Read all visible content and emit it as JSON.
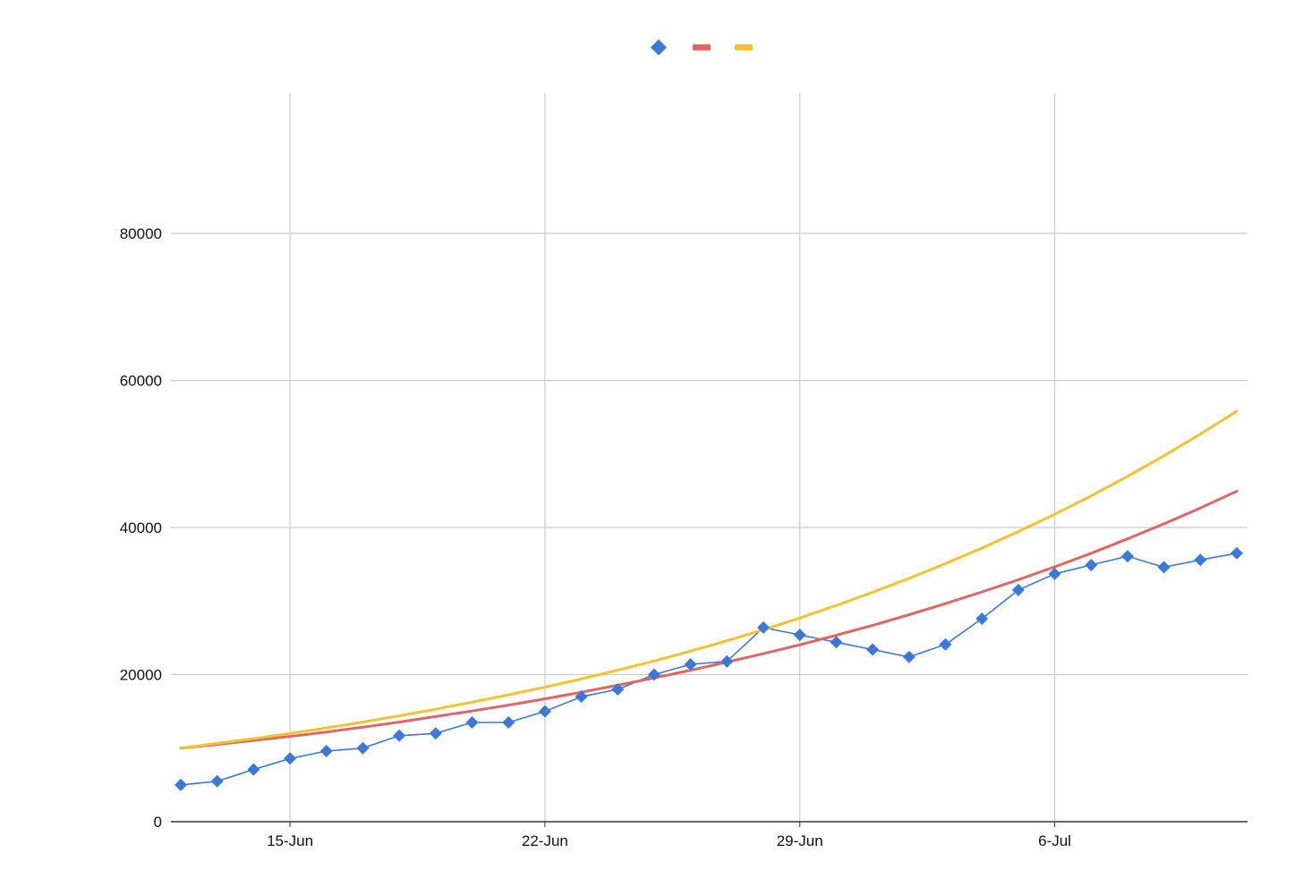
{
  "chart_data": {
    "type": "line",
    "title": "",
    "xlabel": "",
    "ylabel": "",
    "x_axis": {
      "type": "date",
      "start": "12-Jun",
      "end": "11-Jul",
      "ticks": [
        "15-Jun",
        "22-Jun",
        "29-Jun",
        "6-Jul"
      ]
    },
    "y_axis": {
      "min": 0,
      "max": 100000,
      "ticks": [
        0,
        20000,
        40000,
        60000,
        80000
      ]
    },
    "grid": true,
    "legend": {
      "position": "top",
      "entries": [
        "",
        "",
        ""
      ]
    },
    "x": [
      "12-Jun",
      "13-Jun",
      "14-Jun",
      "15-Jun",
      "16-Jun",
      "17-Jun",
      "18-Jun",
      "19-Jun",
      "20-Jun",
      "21-Jun",
      "22-Jun",
      "23-Jun",
      "24-Jun",
      "25-Jun",
      "26-Jun",
      "27-Jun",
      "28-Jun",
      "29-Jun",
      "30-Jun",
      "1-Jul",
      "2-Jul",
      "3-Jul",
      "4-Jul",
      "5-Jul",
      "6-Jul",
      "7-Jul",
      "8-Jul",
      "9-Jul",
      "10-Jul",
      "11-Jul"
    ],
    "series": [
      {
        "color": "#3c78d8",
        "marker": "diamond",
        "values": [
          5000,
          5500,
          7100,
          8600,
          9600,
          10000,
          11700,
          12000,
          13500,
          13500,
          15000,
          17000,
          18000,
          20000,
          21400,
          21800,
          26400,
          25400,
          24400,
          23400,
          22400,
          24100,
          27600,
          31500,
          33700,
          34900,
          36100,
          34600,
          35600,
          36500
        ]
      },
      {
        "color": "#e06666",
        "marker": "none",
        "values": [
          10000,
          10500,
          11050,
          11600,
          12200,
          12850,
          13550,
          14300,
          15050,
          15850,
          16700,
          17600,
          18550,
          19550,
          20600,
          21700,
          22850,
          24050,
          25350,
          26700,
          28150,
          29650,
          31250,
          32900,
          34650,
          36500,
          38450,
          40500,
          42650,
          44950
        ]
      },
      {
        "color": "#f1c232",
        "marker": "none",
        "values": [
          10000,
          10650,
          11300,
          12000,
          12750,
          13550,
          14400,
          15300,
          16250,
          17250,
          18300,
          19400,
          20600,
          21850,
          23200,
          24600,
          26100,
          27700,
          29400,
          31200,
          33100,
          35100,
          37200,
          39450,
          41800,
          44300,
          46950,
          49750,
          52700,
          55800
        ]
      }
    ]
  }
}
